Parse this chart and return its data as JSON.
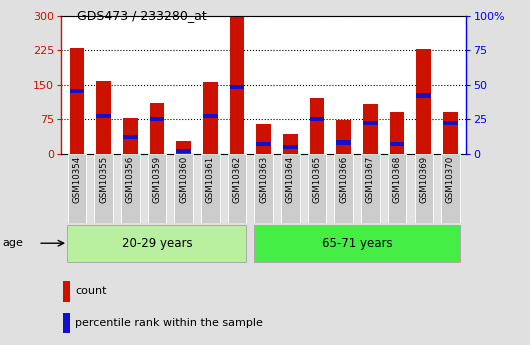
{
  "title": "GDS473 / 233280_at",
  "samples": [
    "GSM10354",
    "GSM10355",
    "GSM10356",
    "GSM10359",
    "GSM10360",
    "GSM10361",
    "GSM10362",
    "GSM10363",
    "GSM10364",
    "GSM10365",
    "GSM10366",
    "GSM10367",
    "GSM10368",
    "GSM10369",
    "GSM10370"
  ],
  "counts": [
    230,
    157,
    78,
    110,
    28,
    155,
    298,
    65,
    42,
    120,
    73,
    108,
    90,
    228,
    90
  ],
  "percentiles": [
    45,
    27,
    12,
    25,
    2,
    27,
    48,
    7,
    5,
    25,
    8,
    22,
    7,
    42,
    22
  ],
  "group1_size": 7,
  "group2_size": 8,
  "group1_label": "20-29 years",
  "group2_label": "65-71 years",
  "group1_color": "#b8f0a0",
  "group2_color": "#44ee44",
  "bar_color_count": "#cc1100",
  "bar_color_pct": "#1111cc",
  "ylim_left": [
    0,
    300
  ],
  "ylim_right": [
    0,
    100
  ],
  "yticks_left": [
    0,
    75,
    150,
    225,
    300
  ],
  "yticks_right": [
    0,
    25,
    50,
    75,
    100
  ],
  "age_label": "age",
  "legend_count": "count",
  "legend_pct": "percentile rank within the sample",
  "bg_color": "#e0e0e0",
  "plot_bg": "#ffffff",
  "xtick_bg": "#cccccc"
}
